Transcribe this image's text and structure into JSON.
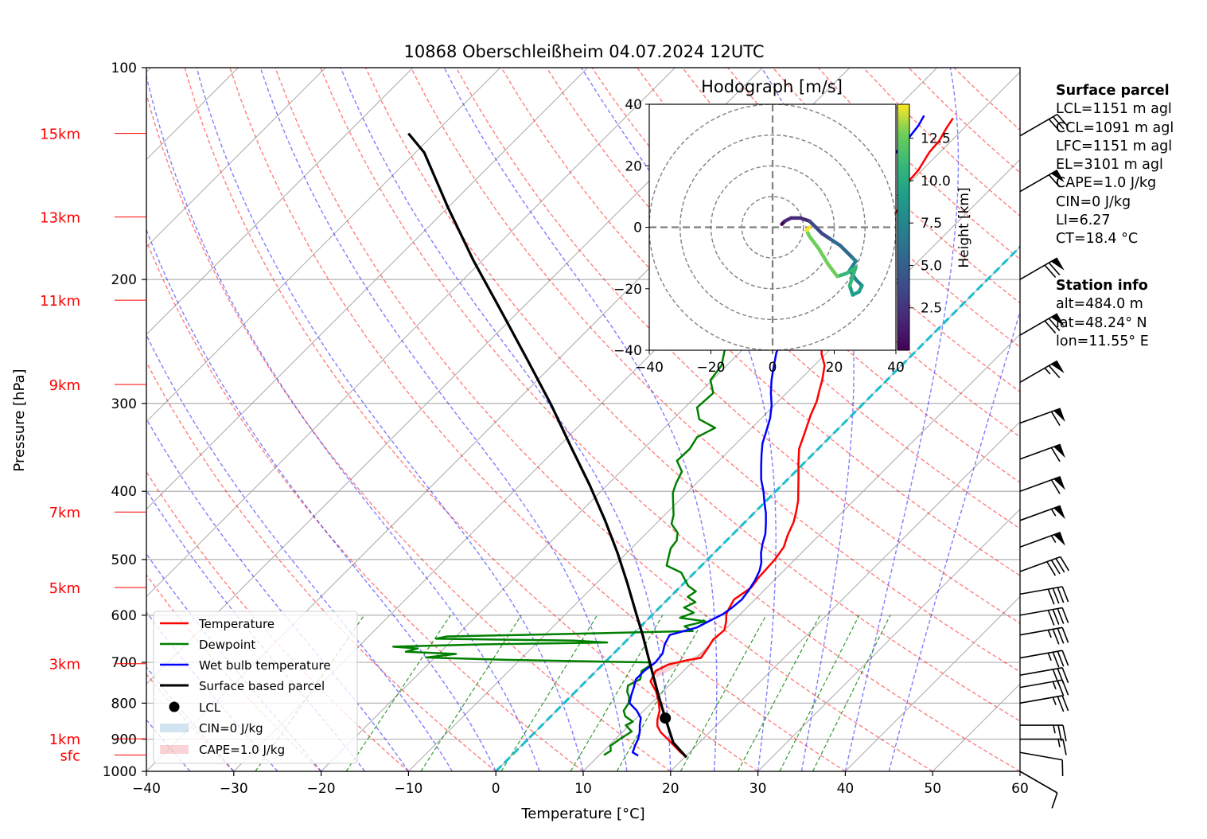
{
  "chart_data": {
    "type": "skew-t",
    "title": "10868 Oberschleißheim 04.07.2024 12UTC",
    "xlabel": "Temperature [°C]",
    "ylabel": "Pressure [hPa]",
    "xlim": [
      -40,
      60
    ],
    "ylim": [
      1000,
      100
    ],
    "x_ticks": [
      "−40",
      "−30",
      "−20",
      "−10",
      "0",
      "10",
      "20",
      "30",
      "40",
      "50",
      "60"
    ],
    "p_ticks": [
      "100",
      "200",
      "300",
      "400",
      "500",
      "600",
      "700",
      "800",
      "900",
      "1000"
    ],
    "height_labels": [
      {
        "text": "15km",
        "p": 124
      },
      {
        "text": "13km",
        "p": 163
      },
      {
        "text": "11km",
        "p": 214
      },
      {
        "text": "9km",
        "p": 282
      },
      {
        "text": "7km",
        "p": 428
      },
      {
        "text": "5km",
        "p": 548
      },
      {
        "text": "3km",
        "p": 703
      },
      {
        "text": "1km",
        "p": 899
      },
      {
        "text": "sfc",
        "p": 948
      }
    ],
    "legend": {
      "placement": "lower-left",
      "entries": [
        "Temperature",
        "Dewpoint",
        "Wet bulb temperature",
        "Surface based parcel",
        "LCL",
        "CIN=0 J/kg",
        "CAPE=1.0 J/kg"
      ]
    },
    "series": [
      {
        "name": "Temperature",
        "color": "#ff0000",
        "points": [
          [
            20.2,
            955
          ],
          [
            19.0,
            940
          ],
          [
            17.5,
            920
          ],
          [
            16.0,
            900
          ],
          [
            14.4,
            880
          ],
          [
            13.3,
            862
          ],
          [
            12.6,
            845
          ],
          [
            11.8,
            820
          ],
          [
            10.6,
            795
          ],
          [
            9.2,
            770
          ],
          [
            7.4,
            745
          ],
          [
            6.8,
            720
          ],
          [
            7.5,
            705
          ],
          [
            9.2,
            695
          ],
          [
            10.5,
            690
          ],
          [
            10.2,
            670
          ],
          [
            9.8,
            650
          ],
          [
            10.0,
            630
          ],
          [
            9.2,
            612
          ],
          [
            8.4,
            598
          ],
          [
            8.0,
            585
          ],
          [
            7.6,
            570
          ],
          [
            8.2,
            548
          ],
          [
            7.9,
            530
          ],
          [
            7.7,
            500
          ],
          [
            7.3,
            480
          ],
          [
            6.4,
            462
          ],
          [
            5.6,
            443
          ],
          [
            4.7,
            428
          ],
          [
            3.6,
            412
          ],
          [
            2.4,
            398
          ],
          [
            1.0,
            382
          ],
          [
            -0.6,
            365
          ],
          [
            -2.2,
            348
          ],
          [
            -3.4,
            330
          ],
          [
            -4.7,
            312
          ],
          [
            -5.6,
            298
          ],
          [
            -6.5,
            288
          ],
          [
            -7.4,
            278
          ],
          [
            -8.8,
            265
          ],
          [
            -10.5,
            255
          ],
          [
            -11.8,
            245
          ],
          [
            -12.4,
            233
          ],
          [
            -13.3,
            220
          ],
          [
            -13.8,
            210
          ],
          [
            -15.0,
            200
          ],
          [
            -16.8,
            195
          ],
          [
            -17.2,
            185
          ],
          [
            -17.2,
            178
          ],
          [
            -18.0,
            170
          ],
          [
            -18.0,
            163
          ],
          [
            -18.5,
            155
          ],
          [
            -20.2,
            148
          ],
          [
            -20.4,
            140
          ],
          [
            -21.2,
            132
          ],
          [
            -21.4,
            127
          ],
          [
            -22.0,
            122
          ],
          [
            -22.4,
            118
          ]
        ]
      },
      {
        "name": "Dewpoint",
        "color": "#008000",
        "points": [
          [
            10.5,
            948
          ],
          [
            10.8,
            935
          ],
          [
            10.2,
            920
          ],
          [
            10.5,
            900
          ],
          [
            11.0,
            878
          ],
          [
            9.6,
            860
          ],
          [
            10.0,
            850
          ],
          [
            8.5,
            835
          ],
          [
            7.7,
            820
          ],
          [
            7.4,
            800
          ],
          [
            6.8,
            785
          ],
          [
            5.9,
            770
          ],
          [
            5.3,
            755
          ],
          [
            6.0,
            740
          ],
          [
            5.2,
            720
          ],
          [
            5.5,
            708
          ],
          [
            5.2,
            700
          ],
          [
            -1.0,
            698
          ],
          [
            -12.0,
            694
          ],
          [
            -21.0,
            689
          ],
          [
            -18.0,
            681
          ],
          [
            -24.0,
            676
          ],
          [
            -23.0,
            669
          ],
          [
            -26.0,
            665
          ],
          [
            -16.0,
            660
          ],
          [
            -2.0,
            656
          ],
          [
            -6.0,
            652
          ],
          [
            -22.0,
            648
          ],
          [
            -21.0,
            643
          ],
          [
            -13.0,
            640
          ],
          [
            6.5,
            632
          ],
          [
            5.0,
            622
          ],
          [
            6.8,
            612
          ],
          [
            3.5,
            605
          ],
          [
            4.5,
            595
          ],
          [
            2.8,
            585
          ],
          [
            3.5,
            575
          ],
          [
            2.0,
            565
          ],
          [
            2.3,
            555
          ],
          [
            0.8,
            545
          ],
          [
            -0.5,
            532
          ],
          [
            -1.5,
            522
          ],
          [
            -4.0,
            510
          ],
          [
            -4.8,
            495
          ],
          [
            -5.5,
            482
          ],
          [
            -5.7,
            470
          ],
          [
            -6.5,
            458
          ],
          [
            -8.2,
            445
          ],
          [
            -9.0,
            432
          ],
          [
            -10.2,
            418
          ],
          [
            -11.6,
            402
          ],
          [
            -12.3,
            390
          ],
          [
            -13.0,
            375
          ],
          [
            -14.8,
            362
          ],
          [
            -14.7,
            348
          ],
          [
            -15.2,
            335
          ],
          [
            -14.2,
            325
          ],
          [
            -17.0,
            316
          ],
          [
            -18.6,
            304
          ],
          [
            -18.4,
            290
          ],
          [
            -20.2,
            278
          ],
          [
            -20.6,
            265
          ],
          [
            -22.0,
            252
          ],
          [
            -23.5,
            242
          ],
          [
            -26.2,
            232
          ],
          [
            -27.0,
            225
          ],
          [
            -29.0,
            212
          ],
          [
            -29.5,
            205
          ],
          [
            -30.0,
            200
          ],
          [
            -33.0,
            195
          ],
          [
            -33.5,
            185
          ],
          [
            -35.6,
            178
          ],
          [
            -37.0,
            168
          ],
          [
            -37.2,
            160
          ],
          [
            -37.5,
            155
          ],
          [
            -37.7,
            145
          ],
          [
            -37.8,
            138
          ],
          [
            -38.5,
            130
          ],
          [
            -39.0,
            124
          ]
        ]
      },
      {
        "name": "Wet bulb temperature",
        "color": "#0000ff",
        "points": [
          [
            14.5,
            950
          ],
          [
            13.5,
            940
          ],
          [
            13.0,
            920
          ],
          [
            12.6,
            900
          ],
          [
            12.0,
            880
          ],
          [
            11.2,
            860
          ],
          [
            10.5,
            840
          ],
          [
            9.2,
            820
          ],
          [
            7.5,
            800
          ],
          [
            6.8,
            780
          ],
          [
            6.2,
            760
          ],
          [
            5.5,
            740
          ],
          [
            5.5,
            720
          ],
          [
            5.8,
            700
          ],
          [
            5.6,
            680
          ],
          [
            4.8,
            660
          ],
          [
            4.3,
            640
          ],
          [
            6.5,
            625
          ],
          [
            7.2,
            612
          ],
          [
            8.0,
            598
          ],
          [
            8.3,
            585
          ],
          [
            8.5,
            570
          ],
          [
            8.2,
            552
          ],
          [
            7.8,
            535
          ],
          [
            7.2,
            518
          ],
          [
            6.5,
            505
          ],
          [
            5.4,
            490
          ],
          [
            4.5,
            475
          ],
          [
            3.7,
            460
          ],
          [
            2.6,
            445
          ],
          [
            1.4,
            430
          ],
          [
            0.0,
            415
          ],
          [
            -1.4,
            400
          ],
          [
            -3.0,
            385
          ],
          [
            -4.4,
            370
          ],
          [
            -5.8,
            355
          ],
          [
            -7.0,
            342
          ],
          [
            -8.0,
            328
          ],
          [
            -9.0,
            315
          ],
          [
            -10.3,
            302
          ],
          [
            -11.8,
            290
          ],
          [
            -13.2,
            278
          ],
          [
            -14.5,
            266
          ],
          [
            -15.8,
            254
          ],
          [
            -16.8,
            242
          ],
          [
            -17.8,
            232
          ],
          [
            -18.8,
            222
          ],
          [
            -19.7,
            212
          ],
          [
            -20.5,
            203
          ],
          [
            -21.0,
            196
          ],
          [
            -21.3,
            190
          ],
          [
            -21.0,
            182
          ],
          [
            -22.0,
            175
          ],
          [
            -22.5,
            168
          ],
          [
            -22.3,
            162
          ],
          [
            -23.0,
            155
          ],
          [
            -23.5,
            148
          ],
          [
            -24.0,
            140
          ],
          [
            -25.0,
            132
          ],
          [
            -25.2,
            126
          ],
          [
            -25.5,
            121
          ],
          [
            -26.0,
            117
          ]
        ]
      },
      {
        "name": "Surface based parcel",
        "color": "#000000",
        "points": [
          [
            20.2,
            955
          ],
          [
            17.0,
            910
          ],
          [
            13.3,
            840
          ],
          [
            10.5,
            790
          ],
          [
            7.6,
            740
          ],
          [
            4.5,
            690
          ],
          [
            1.2,
            640
          ],
          [
            -2.5,
            590
          ],
          [
            -6.5,
            540
          ],
          [
            -11.0,
            490
          ],
          [
            -16.2,
            440
          ],
          [
            -22.0,
            392
          ],
          [
            -28.5,
            346
          ],
          [
            -35.5,
            302
          ],
          [
            -43.5,
            260
          ],
          [
            -52.0,
            222
          ],
          [
            -61.0,
            188
          ],
          [
            -70.0,
            158
          ],
          [
            -79.0,
            132
          ],
          [
            -83.0,
            124
          ]
        ]
      }
    ],
    "lcl": {
      "name": "LCL",
      "t": 13.3,
      "p": 840
    },
    "cape_shading_label": "CAPE=1.0 J/kg",
    "cin_shading_label": "CIN=0 J/kg",
    "cape_region": {
      "upper": [
        [
          6.8,
          720
        ],
        [
          7.5,
          705
        ],
        [
          9.2,
          695
        ],
        [
          10.5,
          690
        ],
        [
          10.2,
          670
        ]
      ],
      "lower": [
        [
          7.4,
          745
        ],
        [
          9.2,
          770
        ],
        [
          10.6,
          795
        ],
        [
          11.8,
          820
        ]
      ]
    },
    "wind_barbs": [
      {
        "p": 1000,
        "speed_kt": 10,
        "dir": 300
      },
      {
        "p": 940,
        "speed_kt": 10,
        "dir": 280
      },
      {
        "p": 900,
        "speed_kt": 15,
        "dir": 270
      },
      {
        "p": 860,
        "speed_kt": 25,
        "dir": 270
      },
      {
        "p": 800,
        "speed_kt": 25,
        "dir": 260
      },
      {
        "p": 760,
        "speed_kt": 25,
        "dir": 260
      },
      {
        "p": 730,
        "speed_kt": 30,
        "dir": 260
      },
      {
        "p": 690,
        "speed_kt": 35,
        "dir": 260
      },
      {
        "p": 640,
        "speed_kt": 35,
        "dir": 260
      },
      {
        "p": 600,
        "speed_kt": 40,
        "dir": 260
      },
      {
        "p": 560,
        "speed_kt": 40,
        "dir": 260
      },
      {
        "p": 520,
        "speed_kt": 40,
        "dir": 250
      },
      {
        "p": 480,
        "speed_kt": 55,
        "dir": 250
      },
      {
        "p": 440,
        "speed_kt": 55,
        "dir": 250
      },
      {
        "p": 400,
        "speed_kt": 60,
        "dir": 250
      },
      {
        "p": 360,
        "speed_kt": 60,
        "dir": 250
      },
      {
        "p": 320,
        "speed_kt": 60,
        "dir": 250
      },
      {
        "p": 280,
        "speed_kt": 65,
        "dir": 240
      },
      {
        "p": 240,
        "speed_kt": 70,
        "dir": 240
      },
      {
        "p": 200,
        "speed_kt": 70,
        "dir": 240
      },
      {
        "p": 150,
        "speed_kt": 60,
        "dir": 240
      },
      {
        "p": 125,
        "speed_kt": 30,
        "dir": 240
      }
    ]
  },
  "hodograph": {
    "title": "Hodograph [m/s]",
    "xlim": [
      -40,
      40
    ],
    "ylim": [
      -40,
      40
    ],
    "ticks": [
      "−40",
      "−20",
      "0",
      "20",
      "40"
    ],
    "rings": [
      10,
      20,
      30,
      40
    ],
    "colorbar_label": "Height [km]",
    "colorbar_ticks": [
      "2.5",
      "5.0",
      "7.5",
      "10.0",
      "12.5"
    ],
    "colorbar_range": [
      0,
      14.5
    ],
    "trace": [
      [
        3,
        1,
        0.5
      ],
      [
        4,
        2,
        1.0
      ],
      [
        6,
        3,
        1.5
      ],
      [
        9,
        3,
        2.0
      ],
      [
        12,
        2,
        3.0
      ],
      [
        14,
        0,
        4.0
      ],
      [
        16,
        -2,
        4.5
      ],
      [
        19,
        -4,
        5.0
      ],
      [
        22,
        -6,
        5.5
      ],
      [
        24,
        -8,
        6.0
      ],
      [
        26,
        -10,
        6.5
      ],
      [
        27,
        -11,
        7.0
      ],
      [
        25,
        -14,
        7.5
      ],
      [
        27,
        -17,
        8.0
      ],
      [
        29,
        -19,
        8.5
      ],
      [
        28,
        -21,
        9.0
      ],
      [
        26,
        -22,
        9.5
      ],
      [
        25,
        -19,
        10.0
      ],
      [
        26,
        -16,
        10.5
      ],
      [
        27,
        -13,
        11.0
      ],
      [
        24,
        -15,
        11.5
      ],
      [
        21,
        -16,
        12.0
      ],
      [
        18,
        -12,
        12.5
      ],
      [
        15,
        -7,
        13.0
      ],
      [
        12,
        -3,
        13.5
      ],
      [
        11,
        -1,
        14.0
      ],
      [
        12,
        0,
        14.3
      ]
    ]
  },
  "surface_parcel": {
    "header": "Surface parcel",
    "lines": [
      "LCL=1151 m agl",
      "CCL=1091 m agl",
      "LFC=1151 m agl",
      "EL=3101 m agl",
      "CAPE=1.0 J/kg",
      "CIN=0 J/kg",
      "LI=6.27",
      "CT=18.4 °C"
    ]
  },
  "station_info": {
    "header": "Station info",
    "lines": [
      "alt=484.0 m",
      "lat=48.24° N",
      "lon=11.55° E"
    ]
  }
}
